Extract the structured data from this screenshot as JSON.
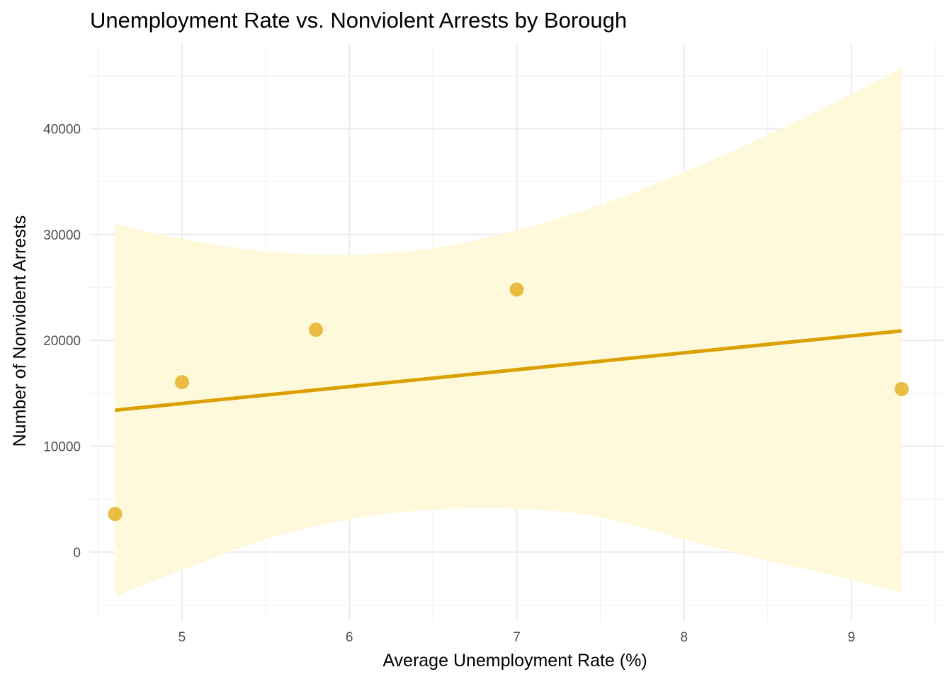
{
  "chart_data": {
    "type": "scatter",
    "title": "Unemployment Rate vs. Nonviolent Arrests by Borough",
    "xlabel": "Average Unemployment Rate (%)",
    "ylabel": "Number of Nonviolent Arrests",
    "xlim": [
      4.45,
      9.55
    ],
    "ylim": [
      -6500,
      48000
    ],
    "x_ticks": [
      5,
      6,
      7,
      8,
      9
    ],
    "x_tick_labels": [
      "5",
      "6",
      "7",
      "8",
      "9"
    ],
    "y_ticks": [
      0,
      10000,
      20000,
      30000,
      40000
    ],
    "y_tick_labels": [
      "0",
      "10000",
      "20000",
      "30000",
      "40000"
    ],
    "grid": true,
    "legend": "none",
    "points": [
      {
        "x": 4.6,
        "y": 3600
      },
      {
        "x": 5.0,
        "y": 16050
      },
      {
        "x": 5.8,
        "y": 21000
      },
      {
        "x": 7.0,
        "y": 24800
      },
      {
        "x": 9.3,
        "y": 15400
      }
    ],
    "trend_line": {
      "x": [
        4.6,
        9.3
      ],
      "y": [
        13400,
        20900
      ]
    },
    "confidence_band": {
      "x": [
        4.6,
        5.0,
        5.5,
        6.0,
        6.5,
        7.0,
        7.5,
        8.0,
        8.5,
        9.0,
        9.3
      ],
      "upper": [
        31000,
        29600,
        28400,
        28100,
        28700,
        30400,
        32800,
        35900,
        39400,
        43300,
        45700
      ],
      "lower": [
        -4200,
        -1700,
        1200,
        3100,
        4000,
        4100,
        3300,
        1200,
        -800,
        -2600,
        -3800
      ]
    },
    "colors": {
      "point": "#e6b227",
      "line": "#daa000",
      "band": "#fff9db",
      "background": "#ffffff"
    }
  }
}
